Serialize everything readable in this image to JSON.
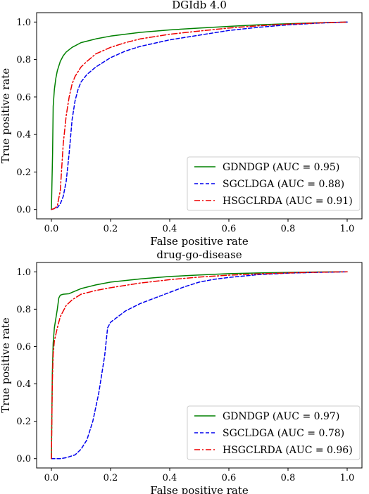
{
  "chart_data": [
    {
      "type": "line",
      "title": "DGIdb 4.0",
      "xlabel": "False positive rate",
      "ylabel": "True positive rate",
      "xlim": [
        0,
        1
      ],
      "ylim": [
        0,
        1
      ],
      "xticks": [
        "0.0",
        "0.2",
        "0.4",
        "0.6",
        "0.8",
        "1.0"
      ],
      "yticks": [
        "0.0",
        "0.2",
        "0.4",
        "0.6",
        "0.8",
        "1.0"
      ],
      "legend_position": "bottom-right",
      "series": [
        {
          "name": "GDNDGP (AUC = 0.95)",
          "color": "#008000",
          "style": "solid",
          "points": [
            [
              0,
              0
            ],
            [
              0.004,
              0.3
            ],
            [
              0.006,
              0.55
            ],
            [
              0.01,
              0.64
            ],
            [
              0.015,
              0.7
            ],
            [
              0.02,
              0.74
            ],
            [
              0.03,
              0.79
            ],
            [
              0.04,
              0.82
            ],
            [
              0.05,
              0.84
            ],
            [
              0.07,
              0.865
            ],
            [
              0.1,
              0.89
            ],
            [
              0.15,
              0.91
            ],
            [
              0.2,
              0.925
            ],
            [
              0.3,
              0.945
            ],
            [
              0.4,
              0.958
            ],
            [
              0.5,
              0.968
            ],
            [
              0.6,
              0.977
            ],
            [
              0.7,
              0.985
            ],
            [
              0.8,
              0.991
            ],
            [
              0.9,
              0.996
            ],
            [
              1.0,
              1.0
            ]
          ]
        },
        {
          "name": "SGCLDGA (AUC = 0.88)",
          "color": "#0000ee",
          "style": "dashed",
          "points": [
            [
              0,
              0
            ],
            [
              0.01,
              0.005
            ],
            [
              0.02,
              0.01
            ],
            [
              0.03,
              0.03
            ],
            [
              0.04,
              0.07
            ],
            [
              0.05,
              0.15
            ],
            [
              0.06,
              0.3
            ],
            [
              0.07,
              0.48
            ],
            [
              0.08,
              0.58
            ],
            [
              0.09,
              0.64
            ],
            [
              0.1,
              0.68
            ],
            [
              0.12,
              0.72
            ],
            [
              0.15,
              0.76
            ],
            [
              0.2,
              0.81
            ],
            [
              0.25,
              0.845
            ],
            [
              0.3,
              0.87
            ],
            [
              0.4,
              0.905
            ],
            [
              0.5,
              0.93
            ],
            [
              0.6,
              0.955
            ],
            [
              0.7,
              0.972
            ],
            [
              0.8,
              0.985
            ],
            [
              0.9,
              0.994
            ],
            [
              1.0,
              1.0
            ]
          ]
        },
        {
          "name": "HSGCLRDA (AUC = 0.91)",
          "color": "#ee0000",
          "style": "dashdot",
          "points": [
            [
              0,
              0
            ],
            [
              0.01,
              0.005
            ],
            [
              0.02,
              0.02
            ],
            [
              0.03,
              0.1
            ],
            [
              0.04,
              0.35
            ],
            [
              0.05,
              0.5
            ],
            [
              0.06,
              0.6
            ],
            [
              0.07,
              0.67
            ],
            [
              0.08,
              0.71
            ],
            [
              0.1,
              0.76
            ],
            [
              0.12,
              0.79
            ],
            [
              0.15,
              0.83
            ],
            [
              0.2,
              0.865
            ],
            [
              0.25,
              0.89
            ],
            [
              0.3,
              0.91
            ],
            [
              0.4,
              0.935
            ],
            [
              0.5,
              0.952
            ],
            [
              0.6,
              0.968
            ],
            [
              0.7,
              0.98
            ],
            [
              0.8,
              0.989
            ],
            [
              0.9,
              0.995
            ],
            [
              1.0,
              1.0
            ]
          ]
        }
      ]
    },
    {
      "type": "line",
      "title": "drug-go-disease",
      "xlabel": "False positive rate",
      "ylabel": "True positive rate",
      "xlim": [
        0,
        1
      ],
      "ylim": [
        0,
        1
      ],
      "xticks": [
        "0.0",
        "0.2",
        "0.4",
        "0.6",
        "0.8",
        "1.0"
      ],
      "yticks": [
        "0.0",
        "0.2",
        "0.4",
        "0.6",
        "0.8",
        "1.0"
      ],
      "legend_position": "bottom-right",
      "series": [
        {
          "name": "GDNDGP (AUC = 0.97)",
          "color": "#008000",
          "style": "solid",
          "points": [
            [
              0,
              0
            ],
            [
              0.003,
              0.45
            ],
            [
              0.006,
              0.62
            ],
            [
              0.01,
              0.7
            ],
            [
              0.015,
              0.75
            ],
            [
              0.02,
              0.8
            ],
            [
              0.025,
              0.86
            ],
            [
              0.03,
              0.875
            ],
            [
              0.04,
              0.88
            ],
            [
              0.06,
              0.883
            ],
            [
              0.07,
              0.89
            ],
            [
              0.1,
              0.91
            ],
            [
              0.15,
              0.93
            ],
            [
              0.2,
              0.945
            ],
            [
              0.3,
              0.962
            ],
            [
              0.4,
              0.975
            ],
            [
              0.5,
              0.983
            ],
            [
              0.6,
              0.99
            ],
            [
              0.7,
              0.994
            ],
            [
              0.8,
              0.997
            ],
            [
              0.9,
              0.999
            ],
            [
              1.0,
              1.0
            ]
          ]
        },
        {
          "name": "SGCLDGA (AUC = 0.78)",
          "color": "#0000ee",
          "style": "dashed",
          "points": [
            [
              0,
              0
            ],
            [
              0.03,
              0.0
            ],
            [
              0.05,
              0.005
            ],
            [
              0.08,
              0.02
            ],
            [
              0.1,
              0.05
            ],
            [
              0.12,
              0.1
            ],
            [
              0.14,
              0.2
            ],
            [
              0.16,
              0.35
            ],
            [
              0.18,
              0.55
            ],
            [
              0.19,
              0.7
            ],
            [
              0.2,
              0.73
            ],
            [
              0.25,
              0.79
            ],
            [
              0.3,
              0.83
            ],
            [
              0.35,
              0.86
            ],
            [
              0.4,
              0.89
            ],
            [
              0.45,
              0.92
            ],
            [
              0.5,
              0.945
            ],
            [
              0.55,
              0.96
            ],
            [
              0.6,
              0.97
            ],
            [
              0.7,
              0.985
            ],
            [
              0.8,
              0.993
            ],
            [
              0.9,
              0.997
            ],
            [
              1.0,
              1.0
            ]
          ]
        },
        {
          "name": "HSGCLRDA (AUC = 0.96)",
          "color": "#ee0000",
          "style": "dashdot",
          "points": [
            [
              0,
              0
            ],
            [
              0.003,
              0.4
            ],
            [
              0.006,
              0.56
            ],
            [
              0.01,
              0.63
            ],
            [
              0.02,
              0.7
            ],
            [
              0.03,
              0.76
            ],
            [
              0.05,
              0.82
            ],
            [
              0.07,
              0.85
            ],
            [
              0.1,
              0.88
            ],
            [
              0.15,
              0.9
            ],
            [
              0.2,
              0.915
            ],
            [
              0.3,
              0.94
            ],
            [
              0.4,
              0.958
            ],
            [
              0.5,
              0.972
            ],
            [
              0.6,
              0.982
            ],
            [
              0.7,
              0.989
            ],
            [
              0.8,
              0.994
            ],
            [
              0.9,
              0.998
            ],
            [
              1.0,
              1.0
            ]
          ]
        }
      ]
    }
  ]
}
